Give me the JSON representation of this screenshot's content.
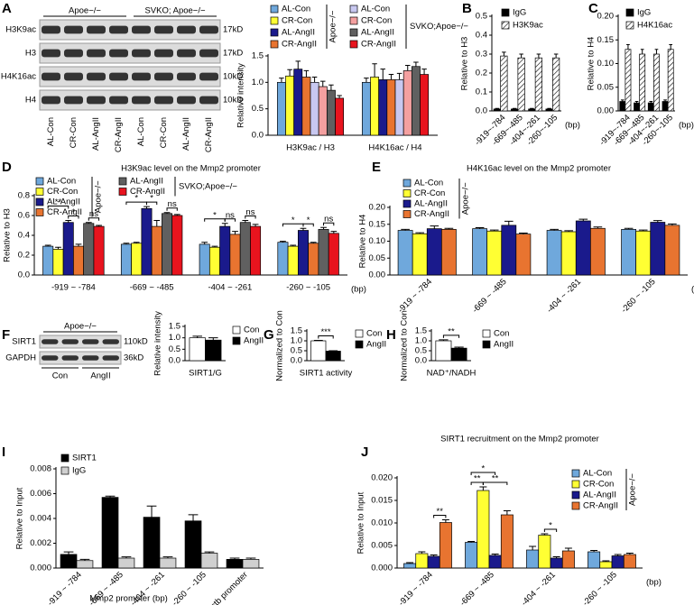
{
  "panel_labels": [
    "A",
    "B",
    "C",
    "D",
    "E",
    "F",
    "G",
    "H",
    "I",
    "J"
  ],
  "blots": {
    "A": {
      "groups": [
        "Apoe−/−",
        "SVKO; Apoe−/−"
      ],
      "rows": [
        {
          "label": "H3K9ac",
          "size": "17kD"
        },
        {
          "label": "H3",
          "size": "17kD"
        },
        {
          "label": "H4K16ac",
          "size": "10kD"
        },
        {
          "label": "H4",
          "size": "10kD"
        }
      ],
      "lanes": [
        "AL-Con",
        "CR-Con",
        "AL-AngII",
        "CR-AngII",
        "AL-Con",
        "CR-Con",
        "AL-AngII",
        "CR-AngII"
      ]
    },
    "F": {
      "groups": [
        "Apoe−/−"
      ],
      "rows": [
        {
          "label": "SIRT1",
          "size": "110kD"
        },
        {
          "label": "GAPDH",
          "size": "36kD"
        }
      ],
      "lanes": [
        "Con",
        "AngII"
      ]
    }
  },
  "chart_data": [
    {
      "type": "bar",
      "y_label": "Relative intensity",
      "categories": [
        "H3K9ac / H3",
        "H4K16ac / H4"
      ],
      "ylim": [
        0,
        1.5
      ],
      "yticks": [
        {
          "value": 0,
          "label": "0.0"
        },
        0.5,
        {
          "value": 1,
          "label": "1.0"
        },
        1.5
      ],
      "series_groups": [
        {
          "label": "Apoe−/−",
          "series": [
            {
              "name": "AL-Con",
              "color": "#6fa8dc",
              "values": [
                1.0,
                1.0
              ],
              "errors": [
                0.08,
                0.08
              ]
            },
            {
              "name": "CR-Con",
              "color": "#ffff33",
              "values": [
                1.12,
                1.1
              ],
              "errors": [
                0.12,
                0.25
              ]
            },
            {
              "name": "AL-AngII",
              "color": "#1a1a8c",
              "values": [
                1.25,
                1.05
              ],
              "errors": [
                0.15,
                0.2
              ]
            },
            {
              "name": "CR-AngII",
              "color": "#e87430",
              "values": [
                1.1,
                1.05
              ],
              "errors": [
                0.12,
                0.1
              ]
            }
          ]
        },
        {
          "label": "SVKO;Apoe−/−",
          "series": [
            {
              "name": "AL-Con",
              "color": "#c8c8f0",
              "values": [
                1.0,
                1.05
              ],
              "errors": [
                0.1,
                0.12
              ]
            },
            {
              "name": "CR-Con",
              "color": "#f4a0a0",
              "values": [
                0.92,
                1.22
              ],
              "errors": [
                0.1,
                0.1
              ]
            },
            {
              "name": "AL-AngII",
              "color": "#606060",
              "values": [
                0.85,
                1.3
              ],
              "errors": [
                0.1,
                0.08
              ]
            },
            {
              "name": "CR-AngII",
              "color": "#e8141e",
              "values": [
                0.7,
                1.15
              ],
              "errors": [
                0.05,
                0.1
              ]
            }
          ]
        }
      ]
    },
    {
      "type": "bar",
      "y_label": "Relative to H3",
      "x_unit": "(bp)",
      "categories": [
        "-919~-784",
        "-669~-485",
        "-404~-261",
        "-260~-105"
      ],
      "ylim": [
        0,
        0.5
      ],
      "yticks": [
        {
          "value": 0,
          "label": "0.0"
        },
        0.1,
        0.2,
        0.3,
        0.4,
        0.5
      ],
      "series": [
        {
          "name": "IgG",
          "color": "#000000",
          "values": [
            0.01,
            0.01,
            0.01,
            0.01
          ],
          "errors": [
            0.003,
            0.003,
            0.003,
            0.003
          ]
        },
        {
          "name": "H3K9ac",
          "color": "#ffffff",
          "hatch": true,
          "values": [
            0.29,
            0.28,
            0.28,
            0.28
          ],
          "errors": [
            0.02,
            0.02,
            0.02,
            0.02
          ]
        }
      ]
    },
    {
      "type": "bar",
      "y_label": "Relative to H4",
      "x_unit": "(bp)",
      "categories": [
        "-919~-784",
        "-669~-485",
        "-404~-261",
        "-260~-105"
      ],
      "ylim": [
        0,
        0.2
      ],
      "yticks": [
        {
          "value": 0,
          "label": "0.00"
        },
        0.05,
        {
          "value": 0.1,
          "label": "0.10"
        },
        0.15,
        {
          "value": 0.2,
          "label": "0.20"
        }
      ],
      "series": [
        {
          "name": "IgG",
          "color": "#000000",
          "values": [
            0.02,
            0.017,
            0.017,
            0.02
          ],
          "errors": [
            0.003,
            0.003,
            0.003,
            0.003
          ]
        },
        {
          "name": "H4K16ac",
          "color": "#ffffff",
          "hatch": true,
          "values": [
            0.13,
            0.12,
            0.12,
            0.13
          ],
          "errors": [
            0.01,
            0.01,
            0.01,
            0.01
          ]
        }
      ]
    },
    {
      "type": "bar",
      "title": "H3K9ac level on the Mmp2 promoter",
      "y_label": "Relative to H3",
      "x_unit": "(bp)",
      "categories": [
        "-919 ~ -784",
        "-669 ~ -485",
        "-404 ~ -261",
        "-260 ~ -105"
      ],
      "ylim": [
        0,
        0.8
      ],
      "yticks": [
        {
          "value": 0,
          "label": "0.0"
        },
        0.2,
        0.4,
        0.6,
        0.8
      ],
      "annotations": [
        "**",
        "*",
        "ns",
        "*",
        "*",
        "ns",
        "*",
        "ns",
        "ns",
        "*",
        "*",
        "ns"
      ],
      "series_groups": [
        {
          "label": "Apoe−/−",
          "series": [
            {
              "name": "AL-Con",
              "color": "#6fa8dc",
              "values": [
                0.29,
                0.31,
                0.31,
                0.33
              ],
              "errors": [
                0.01,
                0.01,
                0.02,
                0.01
              ]
            },
            {
              "name": "CR-Con",
              "color": "#ffff33",
              "values": [
                0.26,
                0.32,
                0.28,
                0.29
              ],
              "errors": [
                0.02,
                0.01,
                0.01,
                0.01
              ]
            },
            {
              "name": "AL-AngII",
              "color": "#1a1a8c",
              "values": [
                0.53,
                0.67,
                0.49,
                0.45
              ],
              "errors": [
                0.02,
                0.02,
                0.03,
                0.02
              ]
            },
            {
              "name": "CR-AngII",
              "color": "#e87430",
              "values": [
                0.29,
                0.49,
                0.41,
                0.32
              ],
              "errors": [
                0.02,
                0.06,
                0.03,
                0.01
              ]
            }
          ]
        },
        {
          "label": "SVKO;Apoe−/−",
          "series": [
            {
              "name": "AL-AngII",
              "color": "#606060",
              "values": [
                0.52,
                0.62,
                0.53,
                0.46
              ],
              "errors": [
                0.01,
                0.01,
                0.02,
                0.02
              ]
            },
            {
              "name": "CR-AngII",
              "color": "#e8141e",
              "values": [
                0.49,
                0.6,
                0.49,
                0.42
              ],
              "errors": [
                0.01,
                0.01,
                0.02,
                0.02
              ]
            }
          ]
        }
      ]
    },
    {
      "type": "bar",
      "title": "H4K16ac level on the Mmp2 promoter",
      "y_label": "Relative to H4",
      "x_unit": "(bp)",
      "categories": [
        "-919 ~ -784",
        "-669 ~ -485",
        "-404 ~ -261",
        "-260 ~ -105"
      ],
      "ylim": [
        0,
        0.2
      ],
      "yticks": [
        {
          "value": 0,
          "label": "0.00"
        },
        0.05,
        {
          "value": 0.1,
          "label": "0.10"
        },
        0.15,
        {
          "value": 0.2,
          "label": "0.20"
        }
      ],
      "series_groups": [
        {
          "label": "Apoe−/−",
          "series": [
            {
              "name": "AL-Con",
              "color": "#6fa8dc",
              "values": [
                0.132,
                0.137,
                0.132,
                0.135
              ],
              "errors": [
                0.003,
                0.003,
                0.003,
                0.003
              ]
            },
            {
              "name": "CR-Con",
              "color": "#ffff33",
              "values": [
                0.122,
                0.13,
                0.128,
                0.13
              ],
              "errors": [
                0.003,
                0.003,
                0.003,
                0.003
              ]
            },
            {
              "name": "AL-AngII",
              "color": "#1a1a8c",
              "values": [
                0.137,
                0.147,
                0.16,
                0.156
              ],
              "errors": [
                0.008,
                0.012,
                0.005,
                0.005
              ]
            },
            {
              "name": "CR-AngII",
              "color": "#e87430",
              "values": [
                0.135,
                0.121,
                0.138,
                0.147
              ],
              "errors": [
                0.003,
                0.003,
                0.004,
                0.004
              ]
            }
          ]
        }
      ]
    },
    {
      "type": "bar",
      "y_label": "Relative intensity",
      "categories": [
        "SIRT1/G"
      ],
      "ylim": [
        0,
        1.5
      ],
      "yticks": [
        {
          "value": 0,
          "label": "0.0"
        },
        0.5,
        {
          "value": 1,
          "label": "1.0"
        },
        1.5
      ],
      "series": [
        {
          "name": "Con",
          "color": "#ffffff",
          "values": [
            1.0
          ],
          "errors": [
            0.07
          ]
        },
        {
          "name": "AngII",
          "color": "#000000",
          "values": [
            0.9
          ],
          "errors": [
            0.1
          ]
        }
      ]
    },
    {
      "type": "bar",
      "y_label": "Normalized to Con",
      "categories": [
        "SIRT1 activity"
      ],
      "annotations": [
        "***"
      ],
      "ylim": [
        0,
        1.5
      ],
      "yticks": [
        {
          "value": 0,
          "label": "0.0"
        },
        0.5,
        {
          "value": 1,
          "label": "1.0"
        },
        1.5
      ],
      "series": [
        {
          "name": "Con",
          "color": "#ffffff",
          "values": [
            1.0
          ],
          "errors": [
            0.02
          ]
        },
        {
          "name": "AngII",
          "color": "#000000",
          "values": [
            0.48
          ],
          "errors": [
            0.02
          ]
        }
      ]
    },
    {
      "type": "bar",
      "y_label": "Normalized to Con",
      "categories": [
        "NAD⁺/NADH"
      ],
      "annotations": [
        "**"
      ],
      "ylim": [
        0,
        1.5
      ],
      "yticks": [
        {
          "value": 0,
          "label": "0.0"
        },
        0.5,
        {
          "value": 1,
          "label": "1.0"
        },
        1.5
      ],
      "series": [
        {
          "name": "Con",
          "color": "#ffffff",
          "values": [
            1.0
          ],
          "errors": [
            0.05
          ]
        },
        {
          "name": "AngII",
          "color": "#000000",
          "values": [
            0.63
          ],
          "errors": [
            0.05
          ]
        }
      ]
    },
    {
      "type": "bar",
      "y_label": "Relative to Input",
      "x_label": "Mmp2 promoter (bp)",
      "categories": [
        "-919 ~ -784",
        "-669 ~ -485",
        "-404 ~ -261",
        "-260 ~ -105",
        "Actb promoter"
      ],
      "ylim": [
        0,
        0.008
      ],
      "yticks": [
        {
          "value": 0,
          "label": "0.000"
        },
        0.002,
        0.004,
        0.006,
        0.008
      ],
      "series": [
        {
          "name": "SIRT1",
          "color": "#000000",
          "values": [
            0.0011,
            0.0057,
            0.0041,
            0.0038,
            0.0007
          ],
          "errors": [
            0.0002,
            0.0001,
            0.0009,
            0.0005,
            0.0001
          ]
        },
        {
          "name": "IgG",
          "color": "#d0d0d0",
          "values": [
            0.0006,
            0.0008,
            0.0008,
            0.0012,
            0.0007
          ],
          "errors": [
            0.0001,
            0.0001,
            0.0001,
            0.0001,
            0.0001
          ]
        }
      ]
    },
    {
      "type": "bar",
      "title": "SIRT1 recruitment on the Mmp2 promoter",
      "y_label": "Relative to Input",
      "x_unit": "(bp)",
      "categories": [
        "-919 ~ -784",
        "-669 ~ -485",
        "-404 ~ -261",
        "-260 ~ -105"
      ],
      "ylim": [
        0,
        0.02
      ],
      "yticks": [
        {
          "value": 0,
          "label": "0.000"
        },
        0.005,
        {
          "value": 0.01,
          "label": "0.010"
        },
        0.015,
        {
          "value": 0.02,
          "label": "0.020"
        }
      ],
      "annotations": [
        "**",
        "**",
        "*",
        "**",
        "*"
      ],
      "series_groups": [
        {
          "label": "Apoe−/−",
          "series": [
            {
              "name": "AL-Con",
              "color": "#6fa8dc",
              "values": [
                0.001,
                0.0057,
                0.004,
                0.0036
              ],
              "errors": [
                0.0002,
                0.0002,
                0.0008,
                0.0003
              ]
            },
            {
              "name": "CR-Con",
              "color": "#ffff33",
              "values": [
                0.0032,
                0.0172,
                0.0073,
                0.0014
              ],
              "errors": [
                0.0004,
                0.0008,
                0.0003,
                0.0002
              ]
            },
            {
              "name": "AL-AngII",
              "color": "#1a1a8c",
              "values": [
                0.0026,
                0.0028,
                0.0022,
                0.0027
              ],
              "errors": [
                0.0003,
                0.0003,
                0.0003,
                0.0003
              ]
            },
            {
              "name": "CR-AngII",
              "color": "#e87430",
              "values": [
                0.0101,
                0.0118,
                0.0038,
                0.003
              ],
              "errors": [
                0.0006,
                0.0009,
                0.0006,
                0.0003
              ]
            }
          ]
        }
      ]
    }
  ]
}
